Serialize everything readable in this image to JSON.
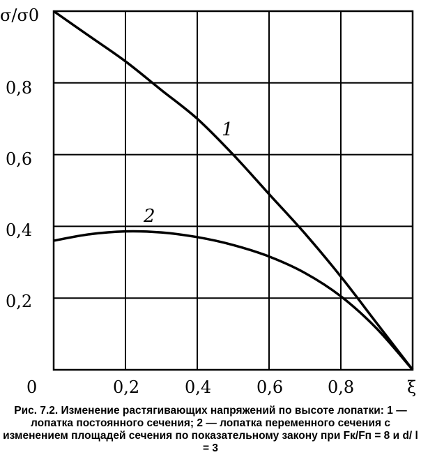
{
  "caption": "Рис. 7.2. Изменение растягивающих напряжений по высоте лопатки: 1 — лопатка постоянного сечения; 2 — лопатка переменного сечения с изменением площадей сечения по показательному закону при Fк/Fп = 8 и d/ l = 3",
  "chart_data": {
    "type": "line",
    "xlabel": "ξ",
    "ylabel": "σ/σ0",
    "xlim": [
      0,
      1
    ],
    "ylim": [
      0,
      1
    ],
    "grid": true,
    "x_ticks": [
      "0",
      "0,2",
      "0,4",
      "0,6",
      "0,8",
      "ξ"
    ],
    "y_ticks": [
      "0,2",
      "0,4",
      "0,6",
      "0,8"
    ],
    "series": [
      {
        "name": "1",
        "x": [
          0,
          0.1,
          0.2,
          0.3,
          0.4,
          0.5,
          0.6,
          0.7,
          0.8,
          0.9,
          1.0
        ],
        "y": [
          1.0,
          0.93,
          0.86,
          0.78,
          0.7,
          0.6,
          0.49,
          0.38,
          0.26,
          0.13,
          0.0
        ]
      },
      {
        "name": "2",
        "x": [
          0,
          0.1,
          0.2,
          0.3,
          0.4,
          0.5,
          0.6,
          0.7,
          0.8,
          0.9,
          1.0
        ],
        "y": [
          0.36,
          0.378,
          0.386,
          0.383,
          0.37,
          0.348,
          0.316,
          0.27,
          0.205,
          0.115,
          0.0
        ]
      }
    ]
  }
}
